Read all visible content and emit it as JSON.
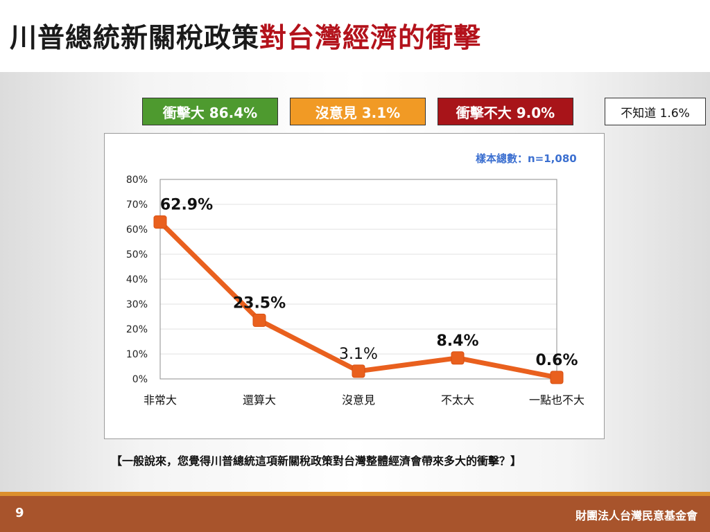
{
  "slide": {
    "title_part1": "川普總統新關稅政策",
    "title_part2": "對台灣經濟的衝擊",
    "page_number": "9",
    "organization": "財團法人台灣民意基金會",
    "question": "【一般說來，您覺得川普總統這項新關稅政策對台灣整體經濟會帶來多大的衝擊？】"
  },
  "summary": {
    "impact_big": "衝擊大 86.4%",
    "no_opinion": "沒意見 3.1%",
    "impact_small": "衝擊不大 9.0%",
    "unknown": "不知道 1.6%"
  },
  "colors": {
    "green": "#4e9a2f",
    "orange": "#f19a25",
    "red": "#a81419",
    "line": "#e9601e",
    "title_red": "#b3121b",
    "footer": "#a8542c",
    "sample_blue": "#3b6fd0"
  },
  "chart_data": {
    "type": "line",
    "sample_label": "樣本總數：n=1,080",
    "categories": [
      "非常大",
      "還算大",
      "沒意見",
      "不太大",
      "一點也不大"
    ],
    "values": [
      62.9,
      23.5,
      3.1,
      8.4,
      0.6
    ],
    "data_labels": [
      "62.9%",
      "23.5%",
      "3.1%",
      "8.4%",
      "0.6%"
    ],
    "label_bold": [
      true,
      true,
      false,
      true,
      true
    ],
    "y_ticks": [
      "80%",
      "70%",
      "60%",
      "50%",
      "40%",
      "30%",
      "20%",
      "10%",
      "0%"
    ],
    "ylim": [
      0,
      80
    ],
    "grid": true
  }
}
